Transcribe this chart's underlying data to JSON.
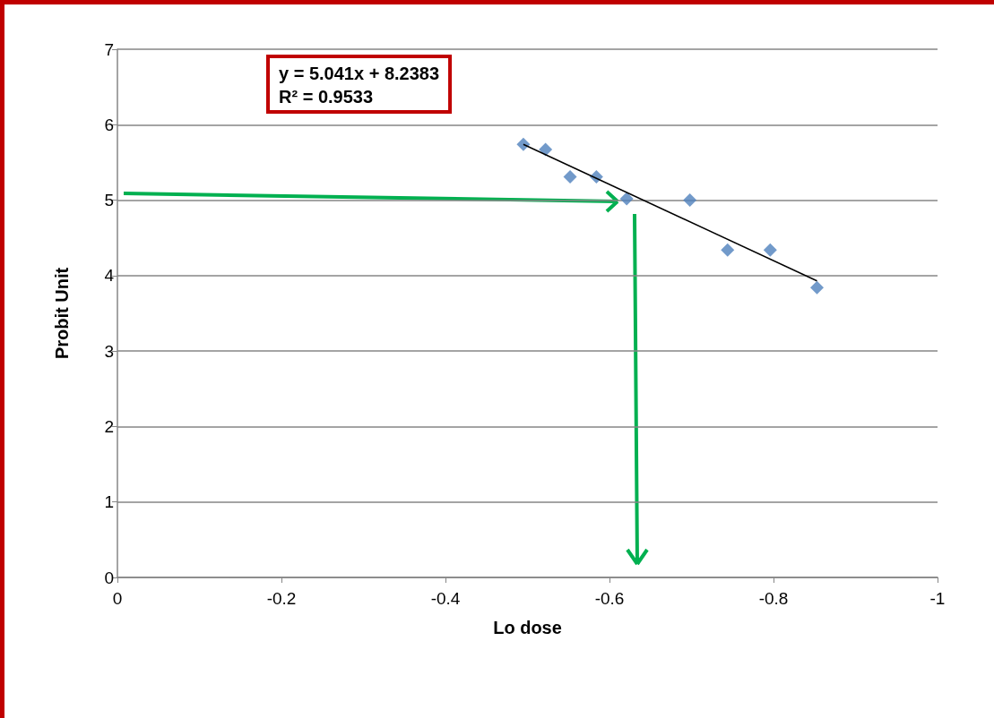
{
  "chart_data": {
    "type": "scatter",
    "xlabel": "Lo dose",
    "ylabel": "Probit Unit",
    "xlim": [
      0,
      -1
    ],
    "xticks": [
      0,
      -0.2,
      -0.4,
      -0.6,
      -0.8,
      -1
    ],
    "ylim": [
      0,
      7
    ],
    "yticks": [
      0,
      1,
      2,
      3,
      4,
      5,
      6,
      7
    ],
    "grid": "y",
    "annotations": [
      "y = 5.041x + 8.2383\nR² = 0.9533"
    ],
    "series": [
      {
        "type": "scatter",
        "color": "#4f81bd",
        "marker": "diamond",
        "x": [
          -0.495,
          -0.522,
          -0.552,
          -0.584,
          -0.621,
          -0.698,
          -0.744,
          -0.796,
          -0.853
        ],
        "values": [
          5.74,
          5.67,
          5.31,
          5.31,
          5.02,
          5.0,
          4.34,
          4.34,
          3.84
        ]
      },
      {
        "type": "line",
        "color": "#000000",
        "marker": "none",
        "line_style": "solid",
        "x": [
          -0.495,
          -0.853
        ],
        "values": [
          5.74,
          3.93
        ]
      }
    ]
  }
}
